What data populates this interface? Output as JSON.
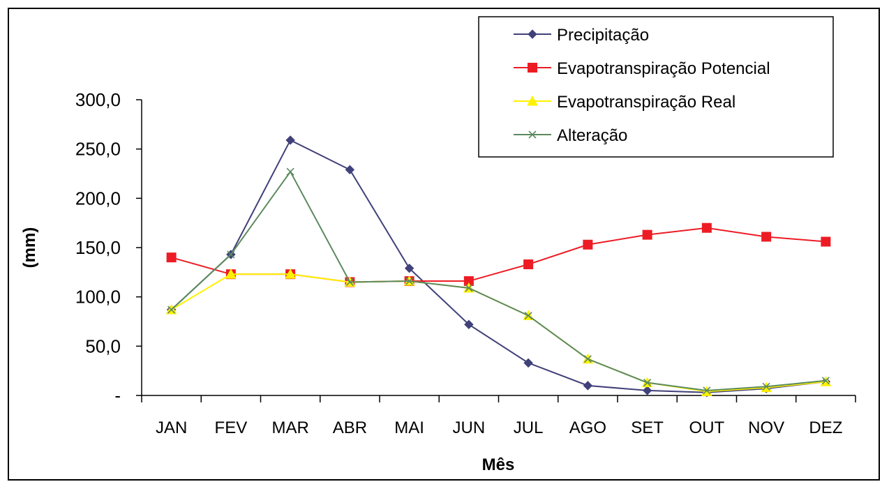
{
  "chart_data": {
    "type": "line",
    "title": "",
    "xlabel": "Mês",
    "ylabel": "(mm)",
    "categories": [
      "JAN",
      "FEV",
      "MAR",
      "ABR",
      "MAI",
      "JUN",
      "JUL",
      "AGO",
      "SET",
      "OUT",
      "NOV",
      "DEZ"
    ],
    "ylim": [
      0,
      300
    ],
    "yticks": [
      0,
      50,
      100,
      150,
      200,
      250,
      300
    ],
    "ytick_labels": [
      "-",
      "50,0",
      "100,0",
      "150,0",
      "200,0",
      "250,0",
      "300,0"
    ],
    "grid": false,
    "legend_position": "top-right",
    "series": [
      {
        "name": "Precipitação",
        "color": "#40407a",
        "marker": "diamond",
        "values": [
          87,
          143,
          259,
          229,
          129,
          72,
          33,
          10,
          5,
          3,
          7,
          14
        ]
      },
      {
        "name": "Evapotranspiração Potencial",
        "color": "#ed1c24",
        "marker": "square",
        "values": [
          140,
          123,
          123,
          115,
          116,
          116,
          133,
          153,
          163,
          170,
          161,
          156
        ]
      },
      {
        "name": "Evapotranspiração Real",
        "color": "#fff200",
        "marker": "triangle",
        "values": [
          87,
          123,
          123,
          115,
          116,
          109,
          81,
          37,
          13,
          4,
          8,
          14
        ]
      },
      {
        "name": "Alteração",
        "color": "#5b8a5f",
        "marker": "x",
        "values": [
          87,
          143,
          227,
          115,
          116,
          109,
          81,
          37,
          13,
          5,
          9,
          15
        ]
      }
    ]
  }
}
